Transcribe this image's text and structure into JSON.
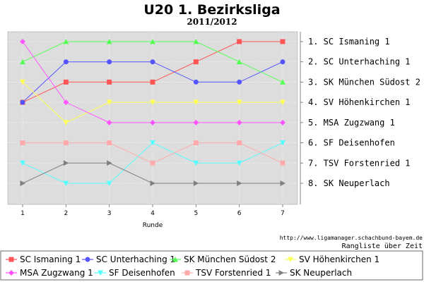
{
  "chart_data": {
    "type": "line",
    "title": "U20 1. Bezirksliga",
    "subtitle": "2011/2012",
    "xlabel": "Runde",
    "ylabel": "",
    "x": [
      1,
      2,
      3,
      4,
      5,
      6,
      7
    ],
    "ylim": [
      1,
      8
    ],
    "y_inverted": true,
    "grid": true,
    "right_axis_labels": [
      "1. SC Ismaning 1",
      "2. SC Unterhaching 1",
      "3. SK München Südost 2",
      "4. SV Höhenkirchen 1",
      "5. MSA Zugzwang 1",
      "6. SF Deisenhofen",
      "7. TSV Forstenried 1",
      "8. SK Neuperlach"
    ],
    "source_text": "http://www.ligamanager.schachbund-bayem.de",
    "caption": "Rangliste über Zeit",
    "legend_position": "bottom",
    "series": [
      {
        "name": "SC Ismaning 1",
        "color": "#ff5555",
        "marker": "square",
        "values": [
          4,
          3,
          3,
          3,
          2,
          1,
          1
        ]
      },
      {
        "name": "SC Unterhaching 1",
        "color": "#5555ff",
        "marker": "circle",
        "values": [
          4,
          2,
          2,
          2,
          3,
          3,
          2
        ]
      },
      {
        "name": "SK München Südost 2",
        "color": "#55ff55",
        "marker": "triangle-up",
        "values": [
          2,
          1,
          1,
          1,
          1,
          2,
          3
        ]
      },
      {
        "name": "SV Höhenkirchen 1",
        "color": "#ffff55",
        "marker": "triangle-down",
        "values": [
          3,
          5,
          4,
          4,
          4,
          4,
          4
        ]
      },
      {
        "name": "MSA Zugzwang 1",
        "color": "#ff55ff",
        "marker": "diamond",
        "values": [
          1,
          4,
          5,
          5,
          5,
          5,
          5
        ]
      },
      {
        "name": "SF Deisenhofen",
        "color": "#55ffff",
        "marker": "triangle-down",
        "values": [
          7,
          8,
          8,
          6,
          7,
          7,
          6
        ]
      },
      {
        "name": "TSV Forstenried 1",
        "color": "#ffaaaa",
        "marker": "square",
        "values": [
          6,
          6,
          6,
          7,
          6,
          6,
          7
        ]
      },
      {
        "name": "SK Neuperlach",
        "color": "#808080",
        "marker": "triangle-right",
        "values": [
          8,
          7,
          7,
          8,
          8,
          8,
          8
        ]
      }
    ]
  }
}
